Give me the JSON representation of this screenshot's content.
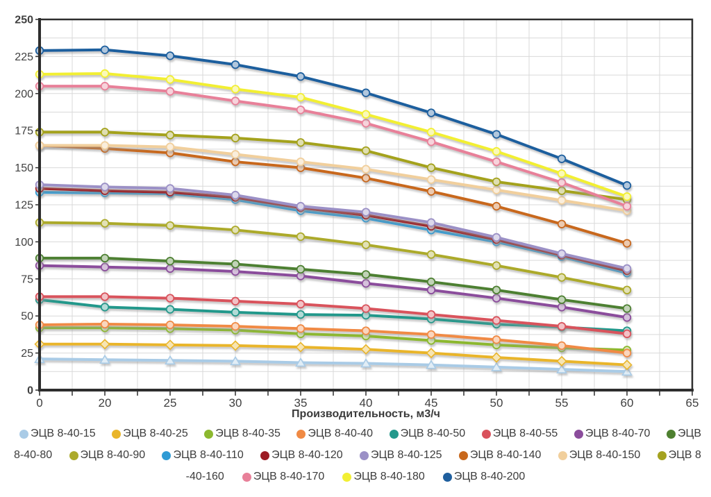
{
  "chart_data": {
    "type": "line",
    "title": "",
    "xlabel": "Производительность, м3/ч",
    "ylabel": "",
    "x_ticks": [
      0,
      20,
      25,
      30,
      35,
      40,
      45,
      50,
      55,
      60,
      65
    ],
    "ylim": [
      0,
      250
    ],
    "y_ticks": [
      0,
      25,
      50,
      75,
      100,
      125,
      150,
      175,
      200,
      225,
      250
    ],
    "y_bold_ticks": [
      0,
      250
    ],
    "grid": true,
    "legend_position": "bottom",
    "series": [
      {
        "name": "ЭЦВ 8-40-15",
        "color": "#a9cbe6",
        "marker": "triangle",
        "values": [
          21,
          20.5,
          20,
          19.5,
          18.5,
          18,
          17,
          15.5,
          14,
          12.5
        ]
      },
      {
        "name": "ЭЦВ 8-40-25",
        "color": "#e9b52a",
        "marker": "diamond",
        "values": [
          31,
          31,
          30.5,
          30,
          29,
          27.5,
          25,
          22,
          19.5,
          17
        ]
      },
      {
        "name": "ЭЦВ 8-40-35",
        "color": "#8cb82f",
        "marker": "circle",
        "values": [
          42,
          42,
          41.5,
          40.5,
          38,
          36.5,
          33.5,
          30.5,
          28.5,
          27
        ]
      },
      {
        "name": "ЭЦВ 8-40-40",
        "color": "#f08a44",
        "marker": "circle",
        "values": [
          44,
          44.5,
          44,
          43,
          41.5,
          40,
          37.5,
          34,
          30,
          25
        ]
      },
      {
        "name": "ЭЦВ 8-40-50",
        "color": "#23988b",
        "marker": "circle",
        "values": [
          61,
          56,
          54.5,
          52.5,
          51,
          50.5,
          48,
          44.5,
          42.5,
          40
        ]
      },
      {
        "name": "ЭЦВ 8-40-55",
        "color": "#d9525c",
        "marker": "circle",
        "values": [
          63,
          63,
          62,
          60,
          58,
          55,
          51,
          47,
          43,
          38
        ]
      },
      {
        "name": "ЭЦВ 8-40-70",
        "color": "#8b4d9c",
        "marker": "circle",
        "values": [
          84,
          83,
          82,
          80,
          77,
          72,
          67.5,
          62,
          56,
          49
        ]
      },
      {
        "name": "ЭЦВ 8-40-80",
        "color": "#4e8030",
        "marker": "circle",
        "values": [
          89,
          89,
          87,
          85,
          81.5,
          78,
          73,
          67.5,
          61,
          55
        ]
      },
      {
        "name": "ЭЦВ 8-40-90",
        "color": "#acaa2b",
        "marker": "circle",
        "values": [
          113,
          112.5,
          111,
          108,
          103.5,
          98,
          91.5,
          84,
          76,
          67.5
        ]
      },
      {
        "name": "ЭЦВ 8-40-110",
        "color": "#2f9bd5",
        "marker": "circle",
        "values": [
          133.5,
          133,
          132.5,
          128.5,
          121,
          116,
          108,
          100,
          90,
          79
        ]
      },
      {
        "name": "ЭЦВ 8-40-120",
        "color": "#9c1b24",
        "marker": "circle",
        "values": [
          136,
          134.5,
          133.5,
          130,
          123,
          118,
          110.5,
          101.5,
          91,
          80.5
        ]
      },
      {
        "name": "ЭЦВ 8-40-125",
        "color": "#9b90c6",
        "marker": "circle",
        "values": [
          138.5,
          137,
          136,
          131.5,
          124,
          120,
          113,
          103,
          92,
          82
        ]
      },
      {
        "name": "ЭЦВ 8-40-140",
        "color": "#c8681c",
        "marker": "circle",
        "values": [
          165,
          163,
          160,
          154,
          150,
          143,
          134,
          124,
          112,
          99
        ]
      },
      {
        "name": "ЭЦВ 8-40-150",
        "color": "#f1cf9c",
        "marker": "circle",
        "values": [
          165,
          165,
          164,
          159,
          154,
          149,
          142,
          135,
          128,
          121
        ]
      },
      {
        "name": "ЭЦВ 8-40-160",
        "color": "#a4a21f",
        "marker": "circle",
        "values": [
          174,
          174,
          172,
          170,
          167,
          161.5,
          150,
          140.5,
          134.5,
          128.5
        ]
      },
      {
        "name": "ЭЦВ 8-40-170",
        "color": "#e88099",
        "marker": "circle",
        "values": [
          205,
          205,
          201.5,
          195,
          189,
          180,
          167.5,
          154,
          140,
          124
        ]
      },
      {
        "name": "ЭЦВ 8-40-180",
        "color": "#f2ef33",
        "marker": "circle",
        "values": [
          213,
          213.5,
          209.5,
          203,
          197.5,
          186,
          174,
          161,
          146,
          130.5
        ]
      },
      {
        "name": "ЭЦВ 8-40-200",
        "color": "#1f5f9e",
        "marker": "circle",
        "values": [
          229,
          229.5,
          225.5,
          219.5,
          211.5,
          200.5,
          187,
          172.5,
          156,
          138
        ]
      }
    ]
  },
  "legend": {
    "rows": [
      [
        {
          "color": "#a9cbe6",
          "label": "ЭЦВ 8-40-15"
        },
        {
          "color": "#e9b52a",
          "label": "ЭЦВ 8-40-25"
        },
        {
          "color": "#8cb82f",
          "label": "ЭЦВ 8-40-35"
        },
        {
          "color": "#f08a44",
          "label": "ЭЦВ 8-40-40"
        },
        {
          "color": "#23988b",
          "label": "ЭЦВ 8-40-50"
        },
        {
          "color": "#d9525c",
          "label": "ЭЦВ 8-40-55"
        },
        {
          "color": "#8b4d9c",
          "label": "ЭЦВ 8-40-70"
        },
        {
          "color": "#4e8030",
          "label": "ЭЦВ"
        }
      ],
      [
        {
          "color": null,
          "label": "8-40-80"
        },
        {
          "color": "#acaa2b",
          "label": "ЭЦВ 8-40-90"
        },
        {
          "color": "#2f9bd5",
          "label": "ЭЦВ 8-40-110"
        },
        {
          "color": "#9c1b24",
          "label": "ЭЦВ 8-40-120"
        },
        {
          "color": "#9b90c6",
          "label": "ЭЦВ 8-40-125"
        },
        {
          "color": "#c8681c",
          "label": "ЭЦВ 8-40-140"
        },
        {
          "color": "#f1cf9c",
          "label": "ЭЦВ 8-40-150"
        },
        {
          "color": "#a4a21f",
          "label": "ЭЦВ 8"
        }
      ],
      [
        {
          "color": null,
          "label": "-40-160"
        },
        {
          "color": "#e88099",
          "label": "ЭЦВ 8-40-170"
        },
        {
          "color": "#f2ef33",
          "label": "ЭЦВ 8-40-180"
        },
        {
          "color": "#1f5f9e",
          "label": "ЭЦВ 8-40-200"
        }
      ]
    ]
  },
  "colors": {
    "background": "#ffffff",
    "grid": "#d9d9d9",
    "axis": "#2e2e2e",
    "tick_label": "#404040",
    "legend_text": "#3c3c3c"
  }
}
